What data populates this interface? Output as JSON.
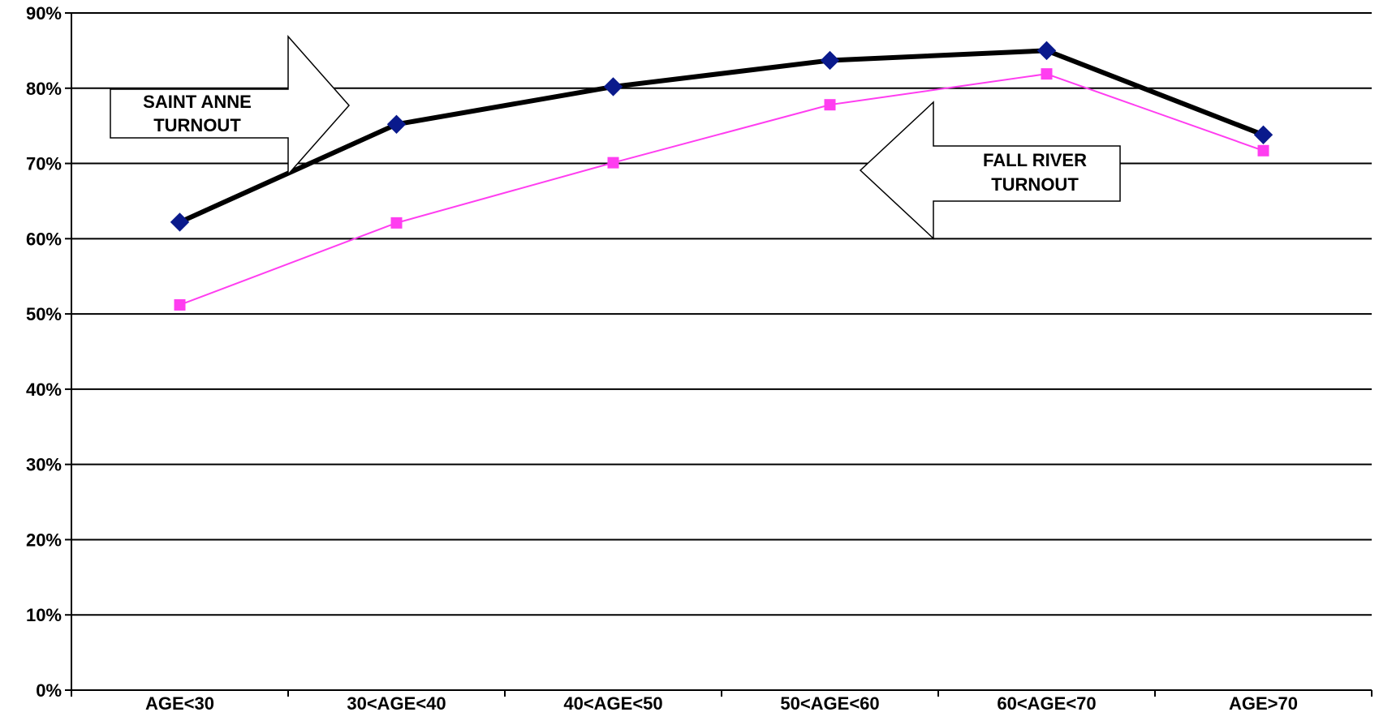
{
  "chart_data": {
    "type": "line",
    "title": "",
    "xlabel": "",
    "ylabel": "",
    "categories": [
      "AGE<30",
      "30<AGE<40",
      "40<AGE<50",
      "50<AGE<60",
      "60<AGE<70",
      "AGE>70"
    ],
    "ylim": [
      0,
      90
    ],
    "y_ticks": [
      0,
      10,
      20,
      30,
      40,
      50,
      60,
      70,
      80,
      90
    ],
    "y_tick_labels": [
      "0%",
      "10%",
      "20%",
      "30%",
      "40%",
      "50%",
      "60%",
      "70%",
      "80%",
      "90%"
    ],
    "grid": true,
    "legend": "none",
    "series": [
      {
        "values": [
          62.2,
          75.2,
          80.2,
          83.7,
          85.0,
          73.8
        ],
        "color": "#000000",
        "marker_color": "#0a1a8c",
        "marker": "diamond"
      },
      {
        "values": [
          51.2,
          62.1,
          70.1,
          77.8,
          81.9,
          71.7
        ],
        "color": "#ff3df0",
        "marker_color": "#ff3df0",
        "marker": "square"
      }
    ],
    "annotations": [
      {
        "line1": "SAINT ANNE",
        "line2": "TURNOUT",
        "direction": "right"
      },
      {
        "line1": "FALL RIVER",
        "line2": "TURNOUT",
        "direction": "left"
      }
    ]
  }
}
